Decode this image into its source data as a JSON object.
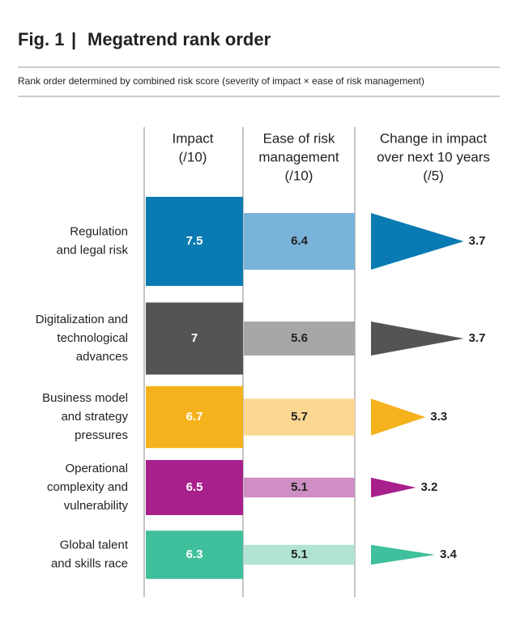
{
  "chart_data": {
    "type": "bar",
    "figure_label": "Fig. 1",
    "title": "Megatrend rank order",
    "subtitle": "Rank order determined by combined risk score (severity of impact × ease of risk management)",
    "categories": [
      [
        "Regulation",
        "and legal risk"
      ],
      [
        "Digitalization and",
        "technological",
        "advances"
      ],
      [
        "Business model",
        "and strategy",
        "pressures"
      ],
      [
        "Operational",
        "complexity and",
        "vulnerability"
      ],
      [
        "Global talent",
        "and skills race"
      ]
    ],
    "series": [
      {
        "header": [
          "Impact",
          "(/10)"
        ],
        "shape": "box",
        "label_color": "#ffffff",
        "colors": [
          "#0a7bb2",
          "#545456",
          "#f5b21c",
          "#a8208c",
          "#3fbf9b"
        ],
        "values": [
          7.5,
          7,
          6.7,
          6.5,
          6.3
        ]
      },
      {
        "header": [
          "Ease of risk",
          "management",
          "(/10)"
        ],
        "shape": "box",
        "label_color": "#222222",
        "colors": [
          "#7ab3d9",
          "#a7a7a9",
          "#fcd791",
          "#cf8fc4",
          "#b0e3d3"
        ],
        "values": [
          6.4,
          5.6,
          5.7,
          5.1,
          5.1
        ]
      },
      {
        "header": [
          "Change in impact",
          "over next 10 years",
          "(/5)"
        ],
        "shape": "triangle",
        "label_color": "#222222",
        "colors": [
          "#0a7bb2",
          "#545456",
          "#f5b21c",
          "#a8208c",
          "#3fbf9b"
        ],
        "values": [
          3.7,
          3.7,
          3.3,
          3.2,
          3.4
        ]
      }
    ]
  }
}
